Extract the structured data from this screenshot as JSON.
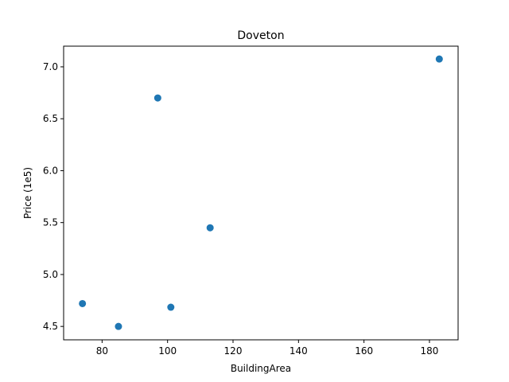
{
  "chart_data": {
    "type": "scatter",
    "title": "Doveton",
    "xlabel": "BuildingArea",
    "ylabel": "Price (1e5)",
    "xlim": [
      68.25,
      188.75
    ],
    "ylim": [
      4.371,
      7.199
    ],
    "xticks": [
      80,
      100,
      120,
      140,
      160,
      180
    ],
    "yticks": [
      4.5,
      5.0,
      5.5,
      6.0,
      6.5,
      7.0
    ],
    "xtick_labels": [
      "80",
      "100",
      "120",
      "140",
      "160",
      "180"
    ],
    "ytick_labels": [
      "4.5",
      "5.0",
      "5.5",
      "6.0",
      "6.5",
      "7.0"
    ],
    "grid": false,
    "series": [
      {
        "color": "#1f77b4",
        "points": [
          {
            "x": 74,
            "y": 4.72
          },
          {
            "x": 85,
            "y": 4.5
          },
          {
            "x": 97,
            "y": 6.7
          },
          {
            "x": 101,
            "y": 4.685
          },
          {
            "x": 113,
            "y": 5.45
          },
          {
            "x": 183,
            "y": 7.075
          }
        ]
      }
    ]
  }
}
